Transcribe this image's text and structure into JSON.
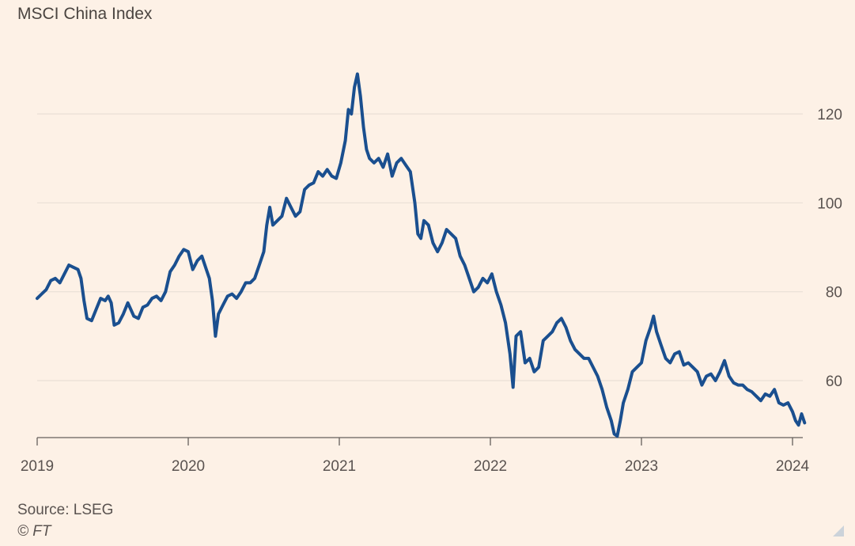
{
  "title": "MSCI China Index",
  "footer": {
    "source": "Source: LSEG",
    "copyright": "© FT"
  },
  "colors": {
    "background": "#fdf1e6",
    "line": "#1a4f8f",
    "grid": "#eadfd6",
    "axis": "#66605c"
  },
  "chart_data": {
    "type": "line",
    "title": "MSCI China Index",
    "xlabel": "",
    "ylabel": "",
    "x_ticks": [
      "2019",
      "2020",
      "2021",
      "2022",
      "2023",
      "2024"
    ],
    "y_ticks": [
      60,
      80,
      100,
      120
    ],
    "xlim": [
      2019.0,
      2024.1
    ],
    "ylim": [
      47,
      130
    ],
    "y_axis_position": "right",
    "grid": "horizontal",
    "series": [
      {
        "points": [
          [
            2019.0,
            78.5
          ],
          [
            2019.03,
            79.5
          ],
          [
            2019.06,
            80.5
          ],
          [
            2019.09,
            82.5
          ],
          [
            2019.12,
            83
          ],
          [
            2019.15,
            82
          ],
          [
            2019.18,
            84
          ],
          [
            2019.21,
            86
          ],
          [
            2019.24,
            85.5
          ],
          [
            2019.27,
            85
          ],
          [
            2019.29,
            83
          ],
          [
            2019.31,
            78
          ],
          [
            2019.33,
            74
          ],
          [
            2019.36,
            73.5
          ],
          [
            2019.39,
            76
          ],
          [
            2019.42,
            78.5
          ],
          [
            2019.45,
            78
          ],
          [
            2019.47,
            79
          ],
          [
            2019.49,
            77.5
          ],
          [
            2019.51,
            72.5
          ],
          [
            2019.54,
            73
          ],
          [
            2019.57,
            75
          ],
          [
            2019.6,
            77.5
          ],
          [
            2019.62,
            76
          ],
          [
            2019.64,
            74.5
          ],
          [
            2019.67,
            74
          ],
          [
            2019.7,
            76.5
          ],
          [
            2019.73,
            77
          ],
          [
            2019.76,
            78.5
          ],
          [
            2019.79,
            79
          ],
          [
            2019.82,
            78
          ],
          [
            2019.85,
            80
          ],
          [
            2019.88,
            84.5
          ],
          [
            2019.91,
            86
          ],
          [
            2019.94,
            88
          ],
          [
            2019.97,
            89.5
          ],
          [
            2020.0,
            89
          ],
          [
            2020.03,
            85
          ],
          [
            2020.06,
            87
          ],
          [
            2020.09,
            88
          ],
          [
            2020.12,
            85
          ],
          [
            2020.14,
            83
          ],
          [
            2020.16,
            78
          ],
          [
            2020.18,
            70
          ],
          [
            2020.2,
            75
          ],
          [
            2020.23,
            77
          ],
          [
            2020.26,
            79
          ],
          [
            2020.29,
            79.5
          ],
          [
            2020.32,
            78.5
          ],
          [
            2020.35,
            80
          ],
          [
            2020.38,
            82
          ],
          [
            2020.41,
            82
          ],
          [
            2020.44,
            83
          ],
          [
            2020.47,
            86
          ],
          [
            2020.5,
            89
          ],
          [
            2020.52,
            95
          ],
          [
            2020.54,
            99
          ],
          [
            2020.56,
            95
          ],
          [
            2020.59,
            96
          ],
          [
            2020.62,
            97
          ],
          [
            2020.65,
            101
          ],
          [
            2020.68,
            99
          ],
          [
            2020.71,
            97
          ],
          [
            2020.74,
            98
          ],
          [
            2020.77,
            103
          ],
          [
            2020.8,
            104
          ],
          [
            2020.83,
            104.5
          ],
          [
            2020.86,
            107
          ],
          [
            2020.89,
            106
          ],
          [
            2020.92,
            107.5
          ],
          [
            2020.95,
            106
          ],
          [
            2020.98,
            105.5
          ],
          [
            2021.01,
            109
          ],
          [
            2021.04,
            114
          ],
          [
            2021.06,
            121
          ],
          [
            2021.08,
            120
          ],
          [
            2021.1,
            126
          ],
          [
            2021.12,
            129
          ],
          [
            2021.14,
            124
          ],
          [
            2021.16,
            117
          ],
          [
            2021.18,
            112
          ],
          [
            2021.2,
            110
          ],
          [
            2021.23,
            109
          ],
          [
            2021.26,
            110
          ],
          [
            2021.29,
            108
          ],
          [
            2021.32,
            111
          ],
          [
            2021.35,
            106
          ],
          [
            2021.38,
            109
          ],
          [
            2021.41,
            110
          ],
          [
            2021.44,
            108.5
          ],
          [
            2021.47,
            107
          ],
          [
            2021.5,
            100
          ],
          [
            2021.52,
            93
          ],
          [
            2021.54,
            92
          ],
          [
            2021.56,
            96
          ],
          [
            2021.59,
            95
          ],
          [
            2021.62,
            91
          ],
          [
            2021.65,
            89
          ],
          [
            2021.68,
            91
          ],
          [
            2021.71,
            94
          ],
          [
            2021.74,
            93
          ],
          [
            2021.77,
            92
          ],
          [
            2021.8,
            88
          ],
          [
            2021.83,
            86
          ],
          [
            2021.86,
            83
          ],
          [
            2021.89,
            80
          ],
          [
            2021.92,
            81
          ],
          [
            2021.95,
            83
          ],
          [
            2021.98,
            82
          ],
          [
            2022.01,
            84
          ],
          [
            2022.04,
            80
          ],
          [
            2022.07,
            77
          ],
          [
            2022.1,
            73
          ],
          [
            2022.13,
            66
          ],
          [
            2022.15,
            58.5
          ],
          [
            2022.17,
            70
          ],
          [
            2022.2,
            71
          ],
          [
            2022.23,
            64
          ],
          [
            2022.26,
            65
          ],
          [
            2022.29,
            62
          ],
          [
            2022.32,
            63
          ],
          [
            2022.35,
            69
          ],
          [
            2022.38,
            70
          ],
          [
            2022.41,
            71
          ],
          [
            2022.44,
            73
          ],
          [
            2022.47,
            74
          ],
          [
            2022.5,
            72
          ],
          [
            2022.53,
            69
          ],
          [
            2022.56,
            67
          ],
          [
            2022.59,
            66
          ],
          [
            2022.62,
            65
          ],
          [
            2022.65,
            65
          ],
          [
            2022.68,
            63
          ],
          [
            2022.71,
            61
          ],
          [
            2022.74,
            58
          ],
          [
            2022.77,
            54
          ],
          [
            2022.8,
            51
          ],
          [
            2022.82,
            48
          ],
          [
            2022.84,
            47.5
          ],
          [
            2022.86,
            51
          ],
          [
            2022.88,
            55
          ],
          [
            2022.91,
            58
          ],
          [
            2022.94,
            62
          ],
          [
            2022.97,
            63
          ],
          [
            2023.0,
            64
          ],
          [
            2023.03,
            69
          ],
          [
            2023.06,
            72
          ],
          [
            2023.08,
            74.5
          ],
          [
            2023.1,
            71
          ],
          [
            2023.13,
            68
          ],
          [
            2023.16,
            65
          ],
          [
            2023.19,
            64
          ],
          [
            2023.22,
            66
          ],
          [
            2023.25,
            66.5
          ],
          [
            2023.28,
            63.5
          ],
          [
            2023.31,
            64
          ],
          [
            2023.34,
            63
          ],
          [
            2023.37,
            62
          ],
          [
            2023.4,
            59
          ],
          [
            2023.43,
            61
          ],
          [
            2023.46,
            61.5
          ],
          [
            2023.49,
            60
          ],
          [
            2023.52,
            62
          ],
          [
            2023.55,
            64.5
          ],
          [
            2023.58,
            61
          ],
          [
            2023.61,
            59.5
          ],
          [
            2023.64,
            59
          ],
          [
            2023.67,
            59
          ],
          [
            2023.7,
            58
          ],
          [
            2023.73,
            57.5
          ],
          [
            2023.76,
            56.5
          ],
          [
            2023.79,
            55.5
          ],
          [
            2023.82,
            57
          ],
          [
            2023.85,
            56.5
          ],
          [
            2023.88,
            58
          ],
          [
            2023.91,
            55
          ],
          [
            2023.94,
            54.5
          ],
          [
            2023.97,
            55
          ],
          [
            2024.0,
            53
          ],
          [
            2024.02,
            51
          ],
          [
            2024.04,
            50
          ],
          [
            2024.06,
            52.5
          ],
          [
            2024.08,
            50.5
          ]
        ]
      }
    ]
  }
}
